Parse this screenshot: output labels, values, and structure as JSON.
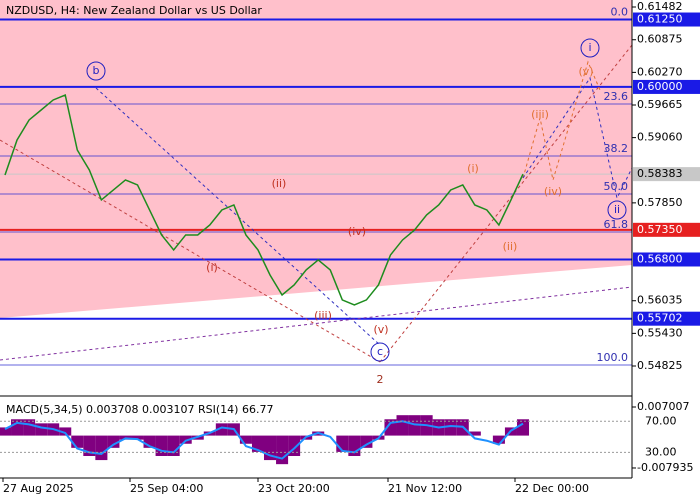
{
  "chart_data": {
    "type": "line",
    "title": "NZDUSD, H4:  New Zealand Dollar vs US Dollar",
    "values": [
      0.58367,
      0.59016,
      0.59387,
      0.59572,
      0.59758,
      0.5985,
      0.58831,
      0.5846,
      0.57904,
      0.58089,
      0.58275,
      0.58182,
      0.57718,
      0.57255,
      0.56977,
      0.57255,
      0.57255,
      0.5744,
      0.57718,
      0.57811,
      0.57255,
      0.56977,
      0.56513,
      0.56142,
      0.56328,
      0.56606,
      0.56791,
      0.56606,
      0.5605,
      0.55957,
      0.5605,
      0.56328,
      0.56884,
      0.57162,
      0.57348,
      0.57626,
      0.57811,
      0.58089,
      0.58182,
      0.57811,
      0.57718,
      0.5744,
      0.57904,
      0.58383
    ],
    "color": "#1e8c1e",
    "ylim": [
      0.54287,
      0.61612
    ],
    "yticks": [
      {
        "value": 0.61482,
        "label": "0.61482"
      },
      {
        "value": 0.60875,
        "label": "0.60875"
      },
      {
        "value": 0.6027,
        "label": "0.60270"
      },
      {
        "value": 0.59665,
        "label": "0.59665"
      },
      {
        "value": 0.5906,
        "label": "0.59060"
      },
      {
        "value": 0.5785,
        "label": "0.57850"
      },
      {
        "value": 0.56035,
        "label": "0.56035"
      },
      {
        "value": 0.5543,
        "label": "0.55430"
      },
      {
        "value": 0.54825,
        "label": "0.54825"
      }
    ],
    "levels": [
      {
        "value": 0.6125,
        "label": "0.61250",
        "color": "#1a1ae6"
      },
      {
        "value": 0.6,
        "label": "0.60000",
        "color": "#1a1ae6"
      },
      {
        "value": 0.58383,
        "label": "0.58383",
        "color": "#c8c8c8"
      },
      {
        "value": 0.5735,
        "label": "0.57350",
        "color": "#e62020"
      },
      {
        "value": 0.568,
        "label": "0.56800",
        "color": "#1a1ae6"
      },
      {
        "value": 0.55702,
        "label": "0.55702",
        "color": "#1a1ae6"
      }
    ],
    "fib_levels": [
      {
        "value": 0.6125,
        "label": "0.0"
      },
      {
        "value": 0.59683,
        "label": "23.6"
      },
      {
        "value": 0.58719,
        "label": "38.2"
      },
      {
        "value": 0.58015,
        "label": "50.0"
      },
      {
        "value": 0.5731,
        "label": "61.8"
      },
      {
        "value": 0.54844,
        "label": "100.0"
      }
    ],
    "x_labels": [
      "27 Aug 2025",
      "25 Sep 04:00",
      "23 Oct 20:00",
      "21 Nov 12:00",
      "22 Dec 00:00"
    ],
    "annotations": [
      {
        "text": "b",
        "color": "#2020c0",
        "circled": true
      },
      {
        "text": "(ii)",
        "color": "#c03020",
        "circled": false
      },
      {
        "text": "(i)",
        "color": "#c03020",
        "circled": false
      },
      {
        "text": "(iv)",
        "color": "#c03020",
        "circled": false
      },
      {
        "text": "(iii)",
        "color": "#c03020",
        "circled": false
      },
      {
        "text": "(v)",
        "color": "#c03020",
        "circled": false
      },
      {
        "text": "c",
        "color": "#2020c0",
        "circled": true
      },
      {
        "text": "2",
        "color": "#a03020",
        "circled": false
      },
      {
        "text": "(i)",
        "color": "#e07030",
        "circled": false
      },
      {
        "text": "(ii)",
        "color": "#e07030",
        "circled": false
      },
      {
        "text": "(iii)",
        "color": "#e07030",
        "circled": false
      },
      {
        "text": "(iv)",
        "color": "#e07030",
        "circled": false
      },
      {
        "text": "(v)",
        "color": "#e07030",
        "circled": false
      },
      {
        "text": "i",
        "color": "#2020c0",
        "circled": true
      },
      {
        "text": "ii",
        "color": "#2020c0",
        "circled": true
      }
    ],
    "indicator": {
      "label": "MACD(5,34,5) 0.003708 0.003107 RSI(14) 66.77",
      "histogram": [
        0.002,
        0.004,
        0.004,
        0.003,
        0.003,
        0.002,
        -0.003,
        -0.005,
        -0.006,
        -0.003,
        -0.001,
        -0.001,
        -0.003,
        -0.005,
        -0.005,
        -0.002,
        -0.001,
        0.001,
        0.003,
        0.003,
        -0.002,
        -0.004,
        -0.006,
        -0.007,
        -0.005,
        -0.001,
        0.001,
        0,
        -0.004,
        -0.005,
        -0.003,
        -0.001,
        0.004,
        0.005,
        0.005,
        0.005,
        0.004,
        0.004,
        0.004,
        0.001,
        0,
        -0.002,
        0.002,
        0.004
      ],
      "histogram_color": "#800080",
      "rsi": [
        60,
        68,
        66,
        62,
        60,
        55,
        35,
        30,
        28,
        40,
        48,
        47,
        38,
        32,
        30,
        45,
        50,
        55,
        62,
        60,
        38,
        33,
        26,
        22,
        35,
        50,
        55,
        50,
        32,
        30,
        40,
        48,
        68,
        70,
        66,
        65,
        62,
        64,
        63,
        48,
        45,
        40,
        58,
        67
      ],
      "rsi_color": "#1e90ff",
      "ylim": [
        -0.01039,
        0.00921
      ],
      "yticks": [
        0.007007,
        -0.007935
      ],
      "rsi_ylim": [
        -3,
        100
      ],
      "rsi_yticks": [
        {
          "value": 70,
          "label": "70.00"
        },
        {
          "value": 30,
          "label": "30.00"
        }
      ]
    }
  }
}
